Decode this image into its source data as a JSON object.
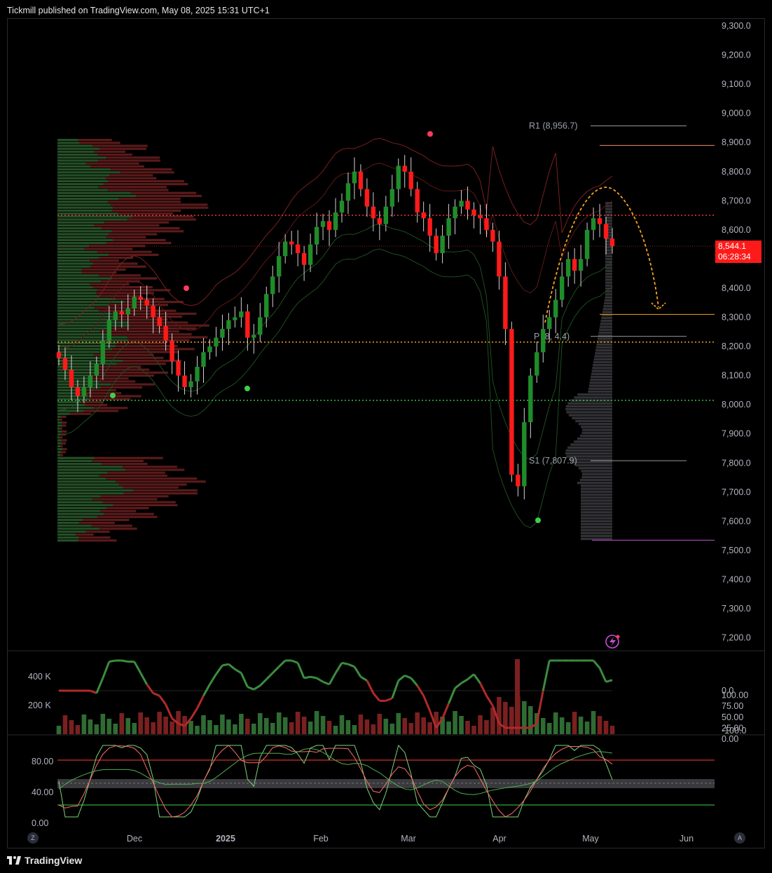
{
  "header": {
    "publisher_text": "Tickmill published on TradingView.com, May 08, 2025 15:31 UTC+1"
  },
  "footer": {
    "brand": "TradingView"
  },
  "nav": {
    "left_btn": "Z",
    "right_btn": "A"
  },
  "colors": {
    "up": "#1f8c2a",
    "down": "#ff1a1a",
    "accent_orange": "#f7a21b",
    "bg": "#000000"
  },
  "price_tag": {
    "price": "8,544.1",
    "countdown": "06:28:34"
  },
  "chart_data": [
    {
      "type": "candlestick",
      "title": "",
      "y_axis_ticks": [
        "9,300.0",
        "9,200.0",
        "9,100.0",
        "9,000.0",
        "8,900.0",
        "8,800.0",
        "8,700.0",
        "8,600.0",
        "8,500.0",
        "8,400.0",
        "8,300.0",
        "8,200.0",
        "8,100.0",
        "8,000.0",
        "7,900.0",
        "7,800.0",
        "7,700.0",
        "7,600.0",
        "7,500.0",
        "7,400.0",
        "7,300.0",
        "7,200.0"
      ],
      "ylim": [
        7150,
        9380
      ],
      "x_axis_ticks": [
        "Dec",
        "2025",
        "Feb",
        "Mar",
        "Apr",
        "May",
        "Jun"
      ],
      "last_price": 8544.1,
      "pivot_levels": [
        {
          "label": "R1 (8,956.7)",
          "value": 8956.7
        },
        {
          "label": "P (8,",
          "value": 8234.4,
          "label_tail": "4.4)"
        },
        {
          "label": "S1 (7,807.9)",
          "value": 7807.9
        }
      ],
      "horizontal_levels": [
        8650,
        8215,
        8015
      ],
      "closes": [
        8160,
        8120,
        8060,
        8030,
        8060,
        8100,
        8140,
        8220,
        8290,
        8320,
        8310,
        8330,
        8370,
        8360,
        8340,
        8300,
        8270,
        8220,
        8150,
        8100,
        8060,
        8080,
        8130,
        8180,
        8200,
        8230,
        8260,
        8290,
        8300,
        8320,
        8230,
        8240,
        8300,
        8380,
        8440,
        8510,
        8560,
        8550,
        8520,
        8480,
        8550,
        8610,
        8630,
        8600,
        8660,
        8700,
        8760,
        8800,
        8740,
        8680,
        8640,
        8620,
        8680,
        8740,
        8820,
        8800,
        8740,
        8660,
        8640,
        8580,
        8520,
        8580,
        8640,
        8680,
        8700,
        8670,
        8650,
        8640,
        8600,
        8560,
        8440,
        8260,
        7760,
        7720,
        7940,
        8100,
        8180,
        8260,
        8300,
        8360,
        8440,
        8500,
        8460,
        8500,
        8600,
        8640,
        8620,
        8570,
        8544.1
      ]
    },
    {
      "type": "line",
      "name": "volume-oscillator",
      "left_ticks": [
        "400 K",
        "200 K"
      ],
      "right_ticks": [
        "0.0",
        "-100.0"
      ]
    },
    {
      "type": "line",
      "name": "stochastic",
      "left_ticks": [
        "80.00",
        "40.00",
        "0.00"
      ],
      "right_ticks": [
        "100.00",
        "75.00",
        "50.00",
        "25.00",
        "0.00"
      ]
    }
  ]
}
